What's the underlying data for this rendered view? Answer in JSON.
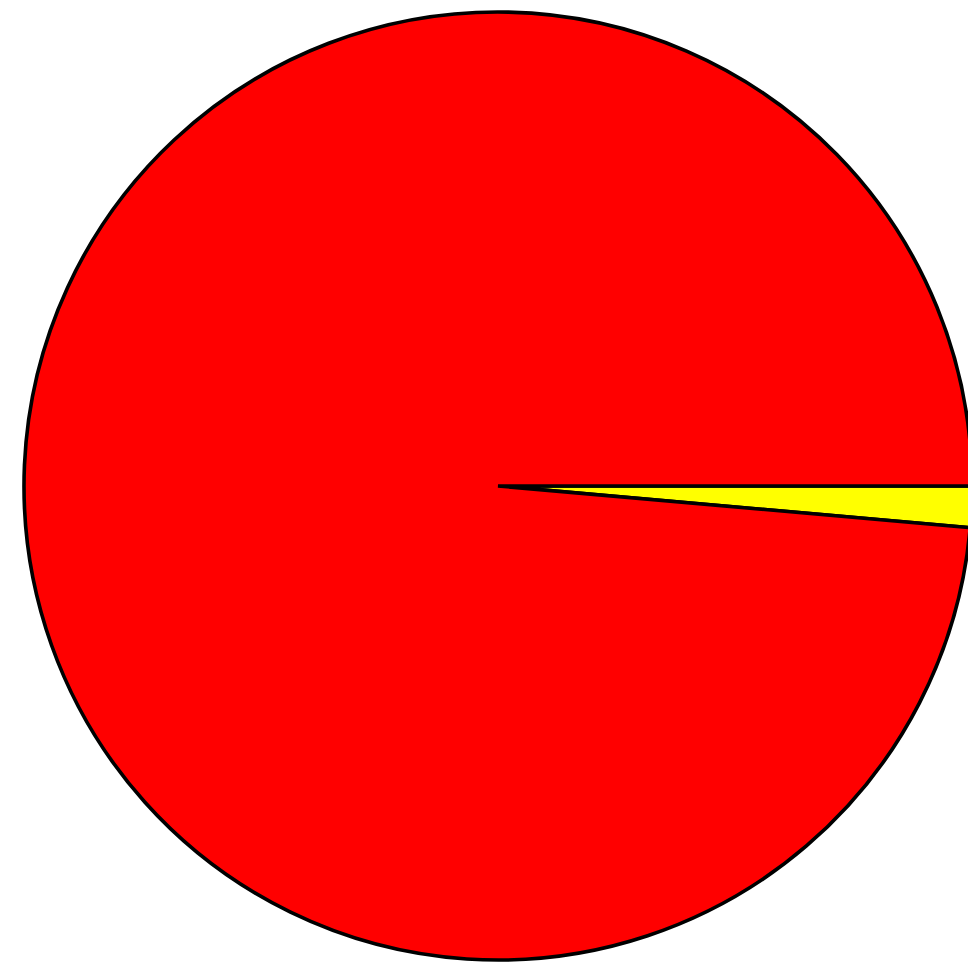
{
  "chart_data": {
    "type": "pie",
    "categories": [
      null,
      null
    ],
    "values": [
      1.4,
      98.6
    ],
    "colors": [
      "#ffff00",
      "#ff0000"
    ]
  }
}
